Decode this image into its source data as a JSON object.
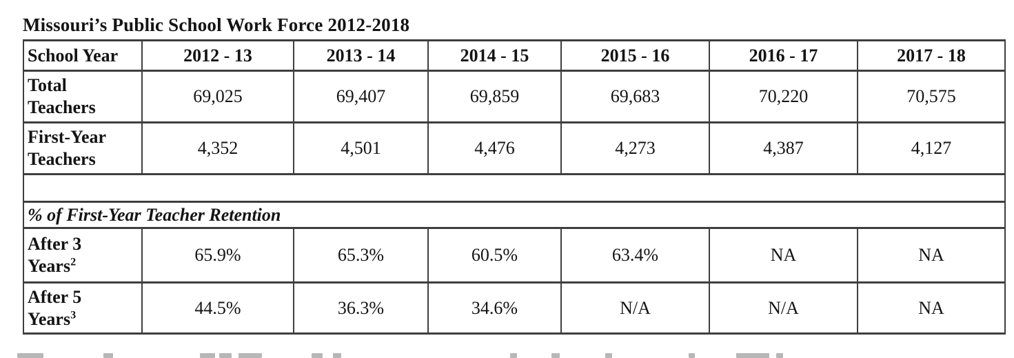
{
  "title": "Missouri’s Public School Work Force 2012-2018",
  "table": {
    "columns": [
      "School Year",
      "2012 - 13",
      "2013 - 14",
      "2014 - 15",
      "2015 - 16",
      "2016 - 17",
      "2017 - 18"
    ],
    "workforce_rows": [
      {
        "label": "Total Teachers",
        "label_lines": [
          "Total",
          "Teachers"
        ],
        "values": [
          "69,025",
          "69,407",
          "69,859",
          "69,683",
          "70,220",
          "70,575"
        ]
      },
      {
        "label": "First-Year Teachers",
        "label_lines": [
          "First-Year",
          "Teachers"
        ],
        "values": [
          "4,352",
          "4,501",
          "4,476",
          "4,273",
          "4,387",
          "4,127"
        ]
      }
    ],
    "section_header": "% of First-Year Teacher Retention",
    "retention_rows": [
      {
        "label": "After 3 Years",
        "label_lines": [
          "After 3",
          "Years"
        ],
        "superscript": "2",
        "values": [
          "65.9%",
          "65.3%",
          "60.5%",
          "63.4%",
          "NA",
          "NA"
        ]
      },
      {
        "label": "After 5 Years",
        "label_lines": [
          "After 5",
          "Years"
        ],
        "superscript": "3",
        "values": [
          "44.5%",
          "36.3%",
          "34.6%",
          "N/A",
          "N/A",
          "NA"
        ]
      }
    ]
  },
  "chart_data": {
    "type": "table",
    "title": "Missouri's Public School Work Force 2012-2018",
    "categories": [
      "2012 - 13",
      "2013 - 14",
      "2014 - 15",
      "2015 - 16",
      "2016 - 17",
      "2017 - 18"
    ],
    "series": [
      {
        "name": "Total Teachers",
        "values": [
          69025,
          69407,
          69859,
          69683,
          70220,
          70575
        ]
      },
      {
        "name": "First-Year Teachers",
        "values": [
          4352,
          4501,
          4476,
          4273,
          4387,
          4127
        ]
      },
      {
        "name": "% of First-Year Teacher Retention - After 3 Years",
        "values": [
          "65.9%",
          "65.3%",
          "60.5%",
          "63.4%",
          "NA",
          "NA"
        ]
      },
      {
        "name": "% of First-Year Teacher Retention - After 5 Years",
        "values": [
          "44.5%",
          "36.3%",
          "34.6%",
          "N/A",
          "N/A",
          "NA"
        ]
      }
    ]
  },
  "colors": {
    "text": "#141414",
    "border": "#3e3e3e",
    "background": "#ffffff"
  }
}
